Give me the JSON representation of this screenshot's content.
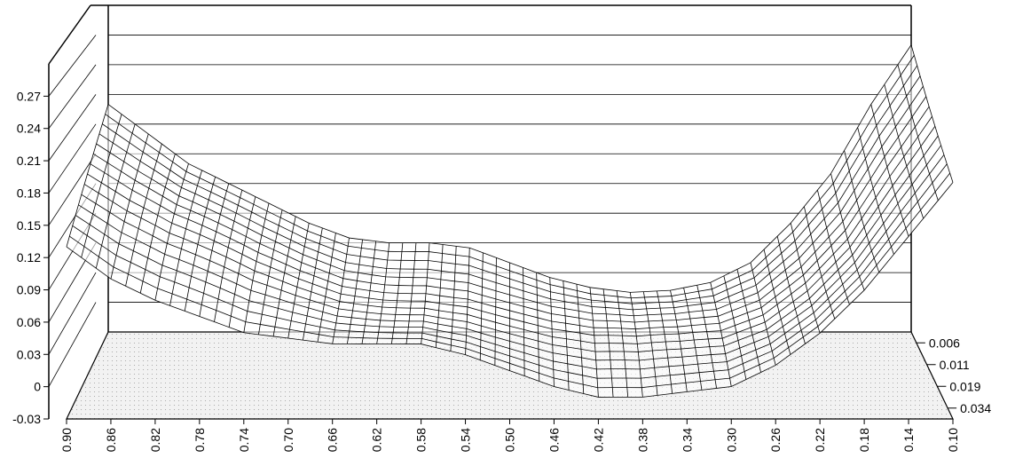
{
  "chart_data": {
    "type": "surface3d",
    "title": "",
    "xlabel": "",
    "ylabel": "",
    "zlabel": "",
    "z_ticks": [
      -0.03,
      0,
      0.03,
      0.06,
      0.09,
      0.12,
      0.15,
      0.18,
      0.21,
      0.24,
      0.27
    ],
    "z_tick_labels": [
      "-0.03",
      "0",
      "0.03",
      "0.06",
      "0.09",
      "0.12",
      "0.15",
      "0.18",
      "0.21",
      "0.24",
      "0.27"
    ],
    "zlim": [
      -0.03,
      0.3
    ],
    "x_ticks": [
      0.9,
      0.86,
      0.82,
      0.78,
      0.74,
      0.7,
      0.66,
      0.62,
      0.58,
      0.54,
      0.5,
      0.46,
      0.42,
      0.38,
      0.34,
      0.3,
      0.26,
      0.22,
      0.18,
      0.14,
      0.1
    ],
    "x_tick_labels": [
      "0.90",
      "0.86",
      "0.82",
      "0.78",
      "0.74",
      "0.70",
      "0.66",
      "0.62",
      "0.58",
      "0.54",
      "0.50",
      "0.46",
      "0.42",
      "0.38",
      "0.34",
      "0.30",
      "0.26",
      "0.22",
      "0.18",
      "0.14",
      "0.10"
    ],
    "xlim": [
      0.9,
      0.1
    ],
    "y_ticks": [
      0.006,
      0.011,
      0.019,
      0.034
    ],
    "y_tick_labels": [
      "0.006",
      "0.011",
      "0.019",
      "0.034"
    ],
    "surface_profile": {
      "x": [
        0.9,
        0.86,
        0.82,
        0.78,
        0.74,
        0.7,
        0.66,
        0.62,
        0.58,
        0.54,
        0.5,
        0.46,
        0.42,
        0.38,
        0.34,
        0.3,
        0.26,
        0.22,
        0.18,
        0.14,
        0.1
      ],
      "z_back": [
        0.2,
        0.17,
        0.14,
        0.12,
        0.1,
        0.08,
        0.065,
        0.06,
        0.06,
        0.055,
        0.04,
        0.025,
        0.015,
        0.01,
        0.012,
        0.02,
        0.04,
        0.08,
        0.13,
        0.2,
        0.26
      ],
      "z_front": [
        0.13,
        0.1,
        0.08,
        0.065,
        0.05,
        0.045,
        0.04,
        0.04,
        0.04,
        0.03,
        0.015,
        0.0,
        -0.01,
        -0.01,
        -0.005,
        0.0,
        0.02,
        0.05,
        0.09,
        0.14,
        0.19
      ]
    },
    "grid": true,
    "legend": "none",
    "colors": {
      "mesh": "#000000",
      "floor": "#f2f2f2",
      "gridline": "#000000"
    }
  }
}
